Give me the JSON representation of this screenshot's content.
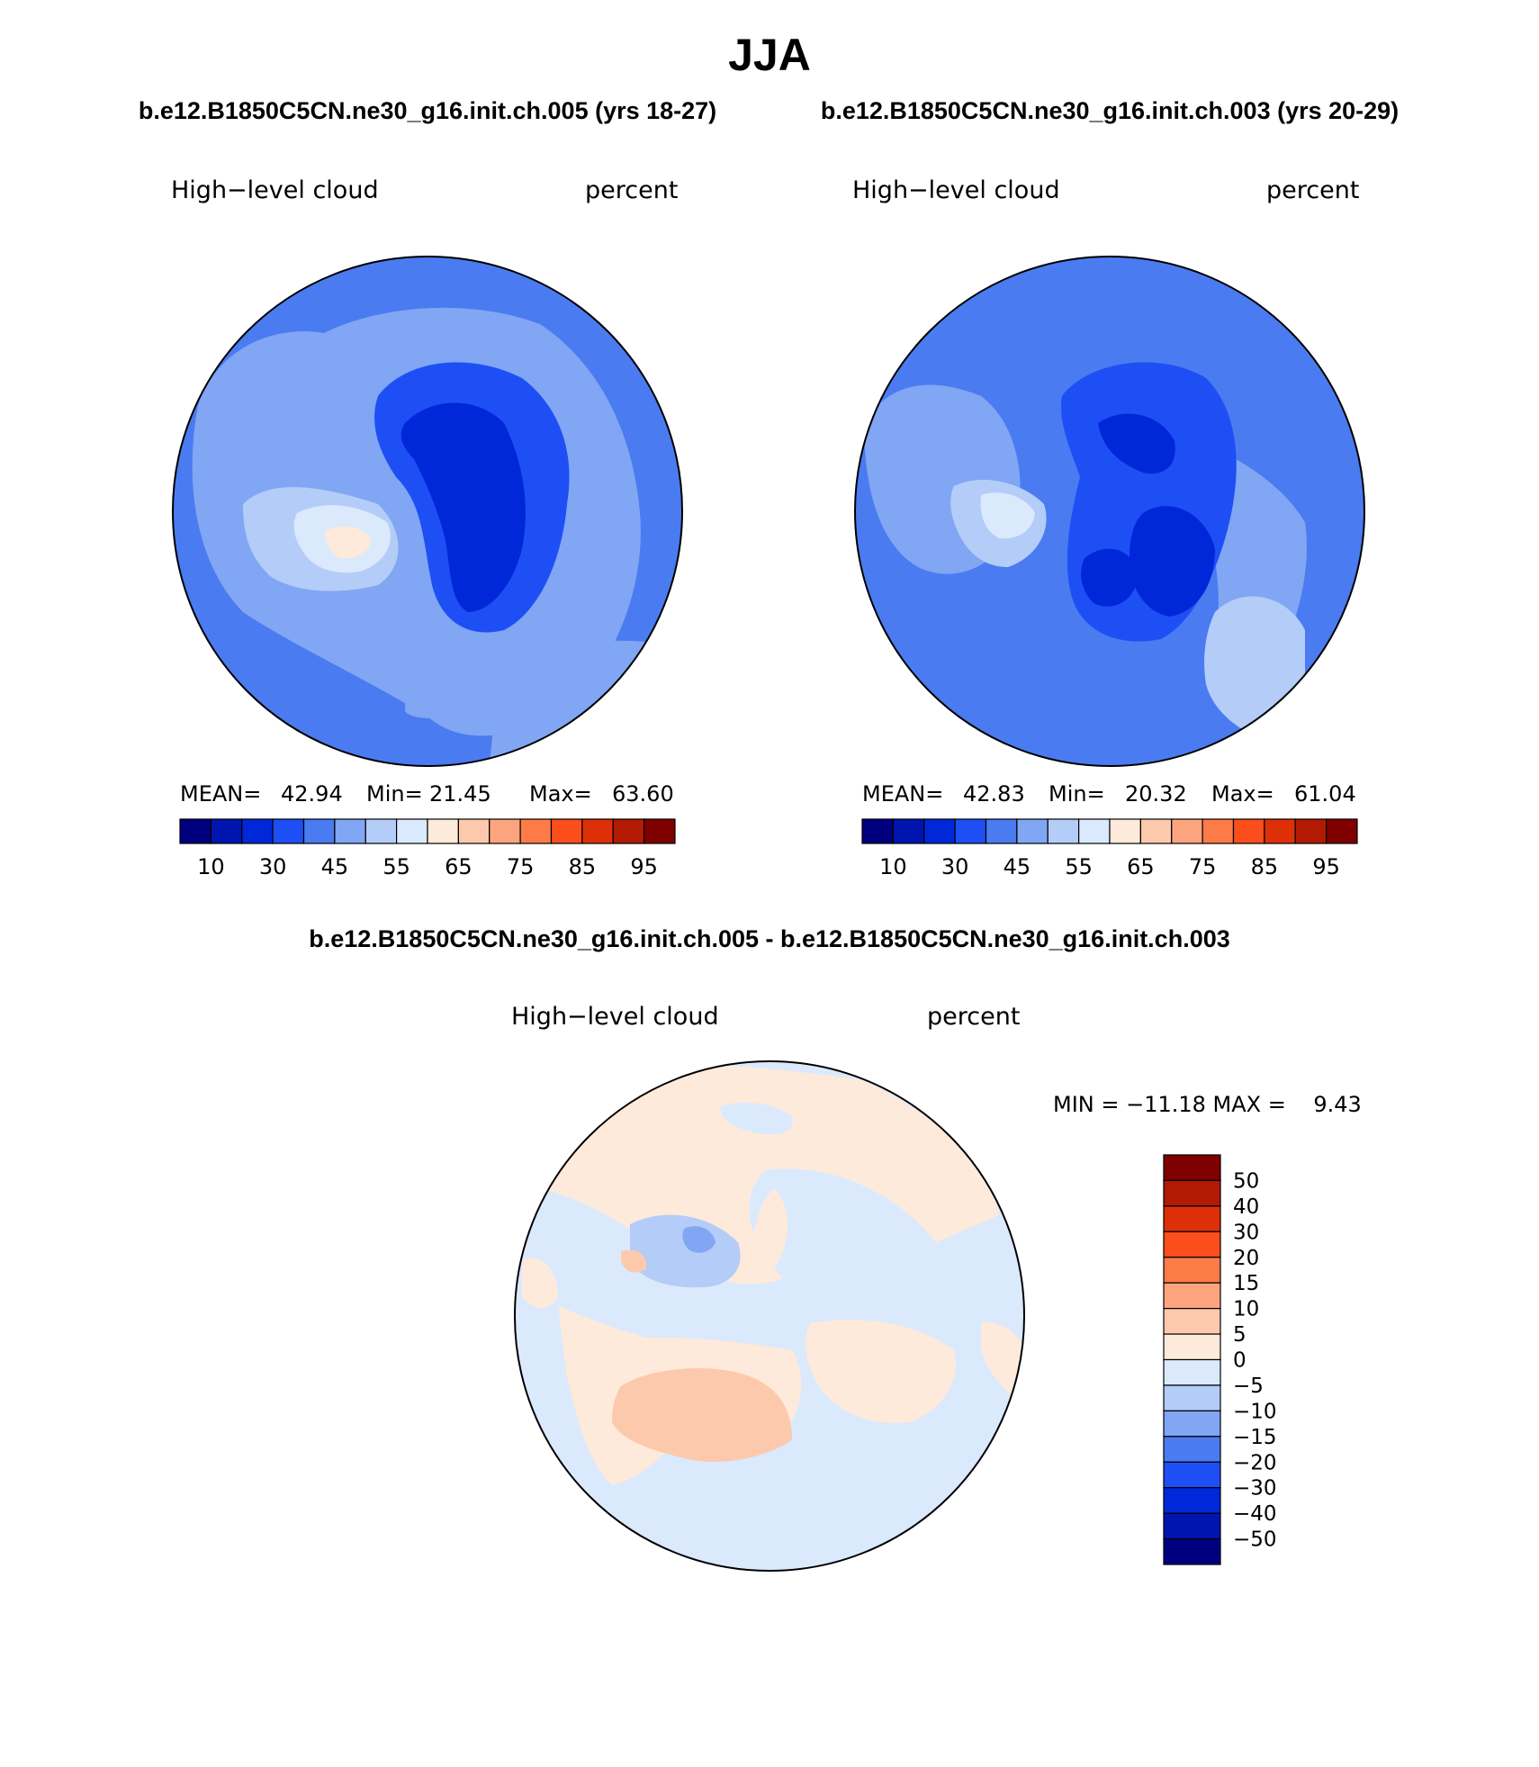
{
  "season": "JJA",
  "cases": {
    "case1_header": "b.e12.B1850C5CN.ne30_g16.init.ch.005 (yrs 18-27)",
    "case2_header": "b.e12.B1850C5CN.ne30_g16.init.ch.003 (yrs 20-29)",
    "diff_header": "b.e12.B1850C5CN.ne30_g16.init.ch.005 - b.e12.B1850C5CN.ne30_g16.init.ch.003"
  },
  "panels": {
    "left": {
      "variable": "High−level cloud",
      "units": "percent",
      "mean_label": "MEAN=",
      "mean": "42.94",
      "min_label": "Min=",
      "min": "21.45",
      "max_label": "Max=",
      "max": "63.60"
    },
    "right": {
      "variable": "High−level cloud",
      "units": "percent",
      "mean_label": "MEAN=",
      "mean": "42.83",
      "min_label": "Min=",
      "min": "20.32",
      "max_label": "Max=",
      "max": "61.04"
    },
    "diff": {
      "variable": "High−level cloud",
      "units": "percent",
      "minmax_text": "MIN = −11.18 MAX =    9.43"
    }
  },
  "colorbars": {
    "abs": {
      "colors": [
        "#00007f",
        "#0015b0",
        "#0028d8",
        "#1e4ff5",
        "#4a7bf0",
        "#80a6f4",
        "#b4ccf8",
        "#dbe9fc",
        "#feeadb",
        "#fdc9ad",
        "#fca47e",
        "#fc7b47",
        "#fb4e1c",
        "#dd3008",
        "#b21a04",
        "#7f0000"
      ],
      "tick_labels": [
        "10",
        "30",
        "45",
        "55",
        "65",
        "75",
        "85",
        "95"
      ]
    },
    "diff": {
      "colors": [
        "#7f0000",
        "#b21a04",
        "#dd3008",
        "#fb4e1c",
        "#fc7b47",
        "#fca47e",
        "#fdc9ad",
        "#feeadb",
        "#dbe9fc",
        "#b4ccf8",
        "#80a6f4",
        "#4a7bf0",
        "#1e4ff5",
        "#0028d8",
        "#0015b0",
        "#00007f"
      ],
      "tick_labels": [
        "50",
        "40",
        "30",
        "20",
        "15",
        "10",
        "5",
        "0",
        "−5",
        "−10",
        "−15",
        "−20",
        "−30",
        "−40",
        "−50"
      ]
    }
  }
}
